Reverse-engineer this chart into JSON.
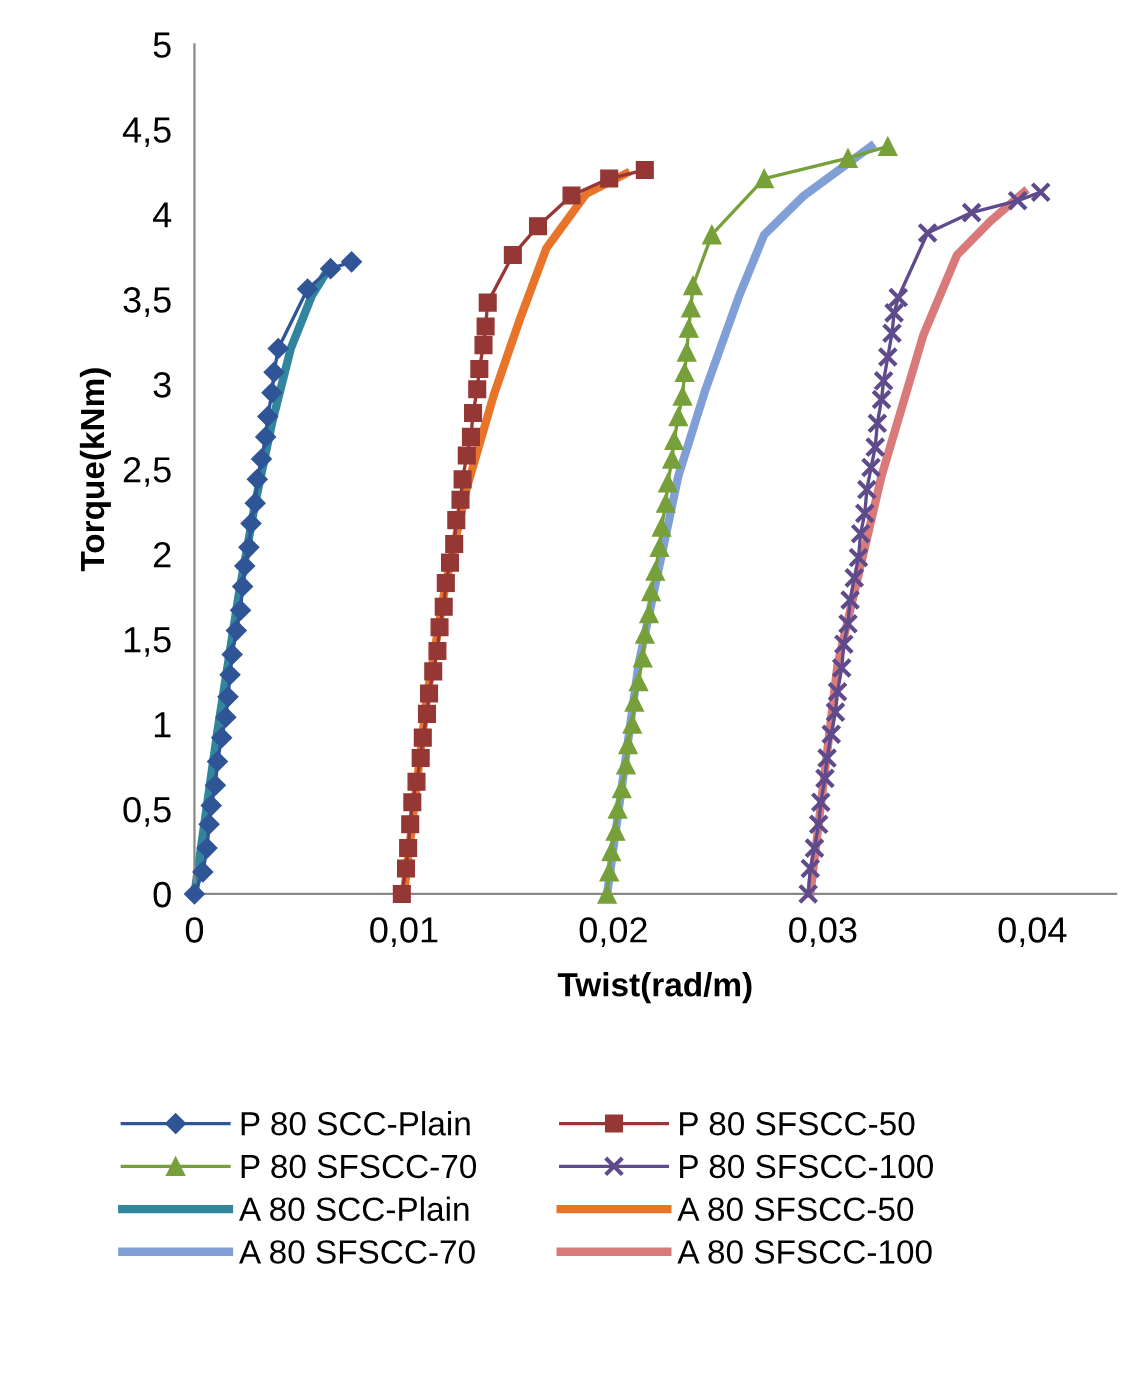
{
  "chart_data": {
    "type": "line",
    "xlabel": "Twist(rad/m)",
    "ylabel": "Torque(kNm)",
    "xlim": [
      0,
      0.044
    ],
    "ylim": [
      0,
      5
    ],
    "xticks": [
      0,
      {
        "value": 0.01,
        "label": "0,01"
      },
      {
        "value": 0.02,
        "label": "0,02"
      },
      {
        "value": 0.03,
        "label": "0,03"
      },
      {
        "value": 0.04,
        "label": "0,04"
      }
    ],
    "yticks": [
      0,
      {
        "value": 0.5,
        "label": "0,5"
      },
      1,
      {
        "value": 1.5,
        "label": "1,5"
      },
      2,
      {
        "value": 2.5,
        "label": "2,5"
      },
      3,
      {
        "value": 3.5,
        "label": "3,5"
      },
      4,
      {
        "value": 4.5,
        "label": "4,5"
      },
      5
    ],
    "grid": false,
    "legend": "bottom",
    "series": [
      {
        "name": "P 80 SCC-Plain",
        "color": "#2f5597",
        "marker": "diamond",
        "x": [
          0,
          0.0004,
          0.0006,
          0.0007,
          0.0008,
          0.001,
          0.0011,
          0.0013,
          0.0015,
          0.0016,
          0.0017,
          0.0018,
          0.002,
          0.0022,
          0.0023,
          0.0024,
          0.0026,
          0.0027,
          0.0029,
          0.003,
          0.0032,
          0.0034,
          0.0035,
          0.0037,
          0.0038,
          0.004,
          0.0054,
          0.0065,
          0.0075
        ],
        "values": [
          0,
          0.13,
          0.27,
          0.41,
          0.52,
          0.64,
          0.78,
          0.92,
          1.04,
          1.16,
          1.29,
          1.41,
          1.55,
          1.67,
          1.81,
          1.93,
          2.04,
          2.18,
          2.3,
          2.44,
          2.56,
          2.69,
          2.81,
          2.95,
          3.07,
          3.21,
          3.56,
          3.68,
          3.72
        ]
      },
      {
        "name": "P 80 SFSCC-50",
        "color": "#953735",
        "marker": "square",
        "x": [
          0.0099,
          0.0101,
          0.0102,
          0.0103,
          0.0104,
          0.0106,
          0.0108,
          0.0109,
          0.0111,
          0.0112,
          0.0114,
          0.0116,
          0.0117,
          0.0119,
          0.012,
          0.0122,
          0.0124,
          0.0125,
          0.0127,
          0.0128,
          0.013,
          0.0132,
          0.0133,
          0.0135,
          0.0136,
          0.0138,
          0.0139,
          0.014,
          0.0152,
          0.0164,
          0.018,
          0.0198,
          0.0215
        ],
        "values": [
          0,
          0.15,
          0.27,
          0.41,
          0.54,
          0.66,
          0.8,
          0.92,
          1.06,
          1.18,
          1.31,
          1.43,
          1.57,
          1.69,
          1.83,
          1.95,
          2.06,
          2.2,
          2.32,
          2.44,
          2.58,
          2.69,
          2.83,
          2.97,
          3.09,
          3.23,
          3.34,
          3.48,
          3.76,
          3.93,
          4.11,
          4.21,
          4.26
        ]
      },
      {
        "name": "P 80 SFSCC-70",
        "color": "#77a03a",
        "marker": "triangle",
        "x": [
          0.0197,
          0.0198,
          0.0199,
          0.0201,
          0.0202,
          0.0204,
          0.0206,
          0.0207,
          0.0209,
          0.021,
          0.0212,
          0.0214,
          0.0215,
          0.0217,
          0.0218,
          0.022,
          0.0222,
          0.0223,
          0.0225,
          0.0226,
          0.0228,
          0.0229,
          0.0231,
          0.0233,
          0.0234,
          0.0235,
          0.0236,
          0.0237,
          0.0238,
          0.0247,
          0.0272,
          0.0312,
          0.0331
        ],
        "values": [
          0,
          0.13,
          0.25,
          0.37,
          0.5,
          0.62,
          0.76,
          0.88,
          1.0,
          1.13,
          1.25,
          1.39,
          1.53,
          1.65,
          1.78,
          1.9,
          2.04,
          2.16,
          2.3,
          2.42,
          2.56,
          2.67,
          2.81,
          2.93,
          3.07,
          3.19,
          3.33,
          3.45,
          3.58,
          3.88,
          4.21,
          4.33,
          4.4
        ]
      },
      {
        "name": "P 80 SFSCC-100",
        "color": "#5f4b8b",
        "marker": "cross",
        "x": [
          0.0293,
          0.0294,
          0.0296,
          0.0298,
          0.0299,
          0.0301,
          0.0302,
          0.0304,
          0.0306,
          0.0307,
          0.0309,
          0.031,
          0.0312,
          0.0313,
          0.0315,
          0.0317,
          0.0318,
          0.032,
          0.0321,
          0.0323,
          0.0325,
          0.0326,
          0.0328,
          0.0329,
          0.0331,
          0.0333,
          0.0334,
          0.0336,
          0.035,
          0.0371,
          0.0393,
          0.0404
        ],
        "values": [
          0,
          0.15,
          0.27,
          0.41,
          0.54,
          0.68,
          0.8,
          0.94,
          1.07,
          1.19,
          1.33,
          1.47,
          1.59,
          1.73,
          1.86,
          1.98,
          2.12,
          2.24,
          2.38,
          2.51,
          2.63,
          2.77,
          2.91,
          3.02,
          3.16,
          3.3,
          3.42,
          3.51,
          3.89,
          4.01,
          4.08,
          4.13
        ]
      },
      {
        "name": "A 80 SCC-Plain",
        "color": "#31859c",
        "marker": "none",
        "x": [
          0,
          0.0011,
          0.0021,
          0.0029,
          0.0037,
          0.0046,
          0.0056,
          0.0065
        ],
        "values": [
          0,
          0.96,
          1.75,
          2.3,
          2.77,
          3.21,
          3.52,
          3.7
        ]
      },
      {
        "name": "A 80 SFSCC-50",
        "color": "#e8742a",
        "marker": "none",
        "x": [
          0.01,
          0.0111,
          0.012,
          0.013,
          0.0143,
          0.0155,
          0.0168,
          0.0187,
          0.0206
        ],
        "values": [
          0,
          1.16,
          1.83,
          2.39,
          2.94,
          3.37,
          3.8,
          4.12,
          4.24
        ]
      },
      {
        "name": "A 80 SFSCC-70",
        "color": "#7f9fd6",
        "marker": "none",
        "x": [
          0.0197,
          0.0212,
          0.0231,
          0.0244,
          0.026,
          0.0272,
          0.0291,
          0.0323
        ],
        "values": [
          0,
          1.35,
          2.46,
          2.97,
          3.52,
          3.88,
          4.11,
          4.4
        ]
      },
      {
        "name": "A 80 SFSCC-100",
        "color": "#d9797a",
        "marker": "none",
        "x": [
          0.0294,
          0.0307,
          0.0328,
          0.0348,
          0.0364,
          0.038,
          0.0396
        ],
        "values": [
          0,
          1.35,
          2.46,
          3.29,
          3.76,
          3.96,
          4.13
        ]
      }
    ]
  }
}
